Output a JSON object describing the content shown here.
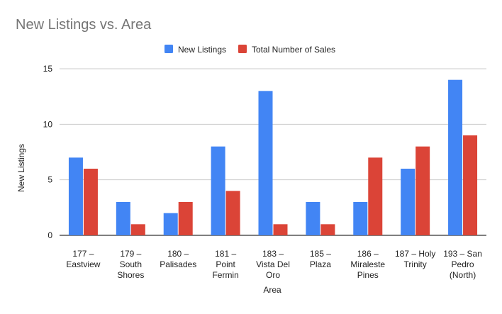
{
  "chart_data": {
    "type": "bar",
    "title": "New Listings vs. Area",
    "xlabel": "Area",
    "ylabel": "New Listings",
    "ylim": [
      0,
      15
    ],
    "yticks": [
      0,
      5,
      10,
      15
    ],
    "grid": true,
    "legend_position": "top-center",
    "categories": [
      [
        "177 –",
        "Eastview"
      ],
      [
        "179 –",
        "South",
        "Shores"
      ],
      [
        "180 –",
        "Palisades"
      ],
      [
        "181 –",
        "Point",
        "Fermin"
      ],
      [
        "183 –",
        "Vista Del",
        "Oro"
      ],
      [
        "185 –",
        "Plaza"
      ],
      [
        "186 –",
        "Miraleste",
        "Pines"
      ],
      [
        "187 – Holy",
        "Trinity"
      ],
      [
        "193 – San",
        "Pedro",
        "(North)"
      ]
    ],
    "series": [
      {
        "name": "New Listings",
        "color": "#4285f4",
        "values": [
          7,
          3,
          2,
          8,
          13,
          3,
          3,
          6,
          14
        ]
      },
      {
        "name": "Total Number of Sales",
        "color": "#db4437",
        "values": [
          6,
          1,
          3,
          4,
          1,
          1,
          7,
          8,
          9
        ]
      }
    ],
    "colors": {
      "title": "#757575",
      "text": "#222222",
      "grid": "#cccccc",
      "axis": "#333333"
    }
  }
}
